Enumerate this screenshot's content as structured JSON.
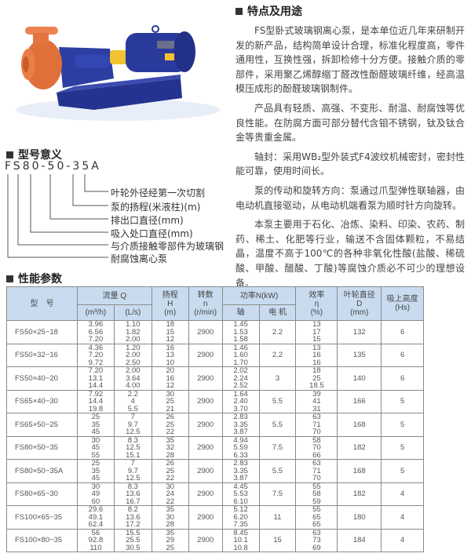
{
  "features": {
    "heading": "特点及用途",
    "paragraphs": [
      "FS型卧式玻璃钢离心泵，是本单位近几年来研制开发的新产品，结构简单设计合理，标准化程度高，零件通用性，互换性强，拆卸检修十分方便。接触介质的零部件，采用聚乙烯醇缩丁醛改性酚醛玻璃纤维，经高温模压成形的酚醛玻璃钢制件。",
      "产品具有轻质、高强、不变形、耐温、耐腐蚀等优良性能。在防腐方面可部分替代含钼不锈钢，钛及钛合金等贵重金属。",
      "轴封：采用WB₂型外装式F4波纹机械密封，密封性能可靠，使用时间长。",
      "泵的传动和旋转方向：泵通过爪型弹性联轴器，由电动机直接驱动，从电动机端看泵为顺时针方向旋转。",
      "本泵主要用于石化、冶炼、染料、印染、农药、制药、稀土、化肥等行业，输送不含固体颗粒，不易结晶，温度不高于100℃的各种非氧化性酸(盐酸、稀硫酸、甲酸、醋酸、丁酸)等腐蚀介质必不可少的理想设备。"
    ]
  },
  "model_meaning": {
    "heading": "型号意义",
    "code": "FS80-50-35A",
    "labels": [
      "叶轮外径经第一次切割",
      "泵的扬程(米液柱)(m)",
      "排出口直径(mm)",
      "吸入处口直径(mm)",
      "与介质接触零部件为玻璃钢",
      "耐腐蚀离心泵"
    ]
  },
  "performance": {
    "heading": "性能参数",
    "headers": {
      "model": "型　号",
      "flow": "流量 Q",
      "flow_m3h": "(m³/h)",
      "flow_ls": "(L/s)",
      "head": "扬程",
      "head_sym": "H",
      "head_unit": "(m)",
      "speed": "转数",
      "speed_sym": "n",
      "speed_unit": "(r/min)",
      "power": "功率N(kW)",
      "power_shaft": "轴",
      "power_motor": "电 机",
      "eff": "效率",
      "eff_sym": "η",
      "eff_unit": "(%)",
      "impeller": "叶轮直径",
      "impeller_sym": "D",
      "impeller_unit": "(mm)",
      "suction": "吸上高度",
      "suction_unit": "(Hs)"
    },
    "rows": [
      {
        "model": "FS50×25−18",
        "q_m3h": [
          "3.96",
          "6.56",
          "7.20"
        ],
        "q_ls": [
          "1.10",
          "1.82",
          "2.00"
        ],
        "h": [
          "18",
          "15",
          "12"
        ],
        "n": "2900",
        "shaft": [
          "1.45",
          "1.53",
          "1.58"
        ],
        "motor": "2.2",
        "eff": [
          "13",
          "17",
          "15"
        ],
        "d": "132",
        "hs": "6"
      },
      {
        "model": "FS50×32−16",
        "q_m3h": [
          "4.36",
          "7.20",
          "9.72"
        ],
        "q_ls": [
          "1.20",
          "2.00",
          "2.50"
        ],
        "h": [
          "16",
          "13",
          "10"
        ],
        "n": "2900",
        "shaft": [
          "1.46",
          "1.60",
          "1.70"
        ],
        "motor": "2.2",
        "eff": [
          "13",
          "16",
          "16"
        ],
        "d": "135",
        "hs": "6"
      },
      {
        "model": "FS50×40−20",
        "q_m3h": [
          "7.20",
          "13.1",
          "14.4"
        ],
        "q_ls": [
          "2.00",
          "3.64",
          "4.00"
        ],
        "h": [
          "20",
          "16",
          "12"
        ],
        "n": "2900",
        "shaft": [
          "2.02",
          "2.24",
          "2.52"
        ],
        "motor": "3",
        "eff": [
          "18",
          "25",
          "18.5"
        ],
        "d": "140",
        "hs": "6"
      },
      {
        "model": "FS65×40−30",
        "q_m3h": [
          "7.92",
          "14.4",
          "19.8"
        ],
        "q_ls": [
          "2.2",
          "4",
          "5.5"
        ],
        "h": [
          "30",
          "25",
          "21"
        ],
        "n": "2900",
        "shaft": [
          "1.64",
          "2.40",
          "3.70"
        ],
        "motor": "5.5",
        "eff": [
          "39",
          "41",
          "31"
        ],
        "d": "166",
        "hs": "5"
      },
      {
        "model": "FS65×50−25",
        "q_m3h": [
          "25",
          "35",
          "45"
        ],
        "q_ls": [
          "7",
          "9.7",
          "12.5"
        ],
        "h": [
          "26",
          "25",
          "22"
        ],
        "n": "2900",
        "shaft": [
          "2.83",
          "3.35",
          "3.87"
        ],
        "motor": "5.5",
        "eff": [
          "63",
          "71",
          "70"
        ],
        "d": "168",
        "hs": "5"
      },
      {
        "model": "FS80×50−35",
        "q_m3h": [
          "30",
          "45",
          "55"
        ],
        "q_ls": [
          "8.3",
          "12.5",
          "15.1"
        ],
        "h": [
          "35",
          "32",
          "28"
        ],
        "n": "2900",
        "shaft": [
          "4.94",
          "5.59",
          "6.33"
        ],
        "motor": "7.5",
        "eff": [
          "58",
          "70",
          "66"
        ],
        "d": "182",
        "hs": "5"
      },
      {
        "model": "FS80×50−35A",
        "q_m3h": [
          "25",
          "35",
          "45"
        ],
        "q_ls": [
          "7",
          "9.7",
          "12.5"
        ],
        "h": [
          "26",
          "25",
          "22"
        ],
        "n": "2900",
        "shaft": [
          "2.83",
          "3.35",
          "3.87"
        ],
        "motor": "5.5",
        "eff": [
          "63",
          "71",
          "70"
        ],
        "d": "168",
        "hs": "5"
      },
      {
        "model": "FS80×65−30",
        "q_m3h": [
          "30",
          "49",
          "60"
        ],
        "q_ls": [
          "8.3",
          "13.6",
          "16.7"
        ],
        "h": [
          "30",
          "24",
          "22"
        ],
        "n": "2900",
        "shaft": [
          "4.45",
          "5.53",
          "6.10"
        ],
        "motor": "7.5",
        "eff": [
          "55",
          "58",
          "59"
        ],
        "d": "182",
        "hs": "4"
      },
      {
        "model": "FS100×65−35",
        "q_m3h": [
          "29.6",
          "49.1",
          "62.4"
        ],
        "q_ls": [
          "8.2",
          "13.6",
          "17.2"
        ],
        "h": [
          "35",
          "30",
          "28"
        ],
        "n": "2900",
        "shaft": [
          "5.12",
          "6.20",
          "7.35"
        ],
        "motor": "11",
        "eff": [
          "55",
          "65",
          "65"
        ],
        "d": "180",
        "hs": "4"
      },
      {
        "model": "FS100×80−35",
        "q_m3h": [
          "56",
          "92.8",
          "110"
        ],
        "q_ls": [
          "15.5",
          "25.5",
          "30.5"
        ],
        "h": [
          "35",
          "29",
          "25"
        ],
        "n": "2900",
        "shaft": [
          "8.45",
          "10.1",
          "10.8"
        ],
        "motor": "15",
        "eff": [
          "63",
          "73",
          "69"
        ],
        "d": "184",
        "hs": "4"
      }
    ]
  },
  "colors": {
    "header_bg": "#c9dcef",
    "pump_blue": "#2a3a9c",
    "pump_orange": "#e0703a",
    "coupling_yellow": "#f2c230"
  }
}
